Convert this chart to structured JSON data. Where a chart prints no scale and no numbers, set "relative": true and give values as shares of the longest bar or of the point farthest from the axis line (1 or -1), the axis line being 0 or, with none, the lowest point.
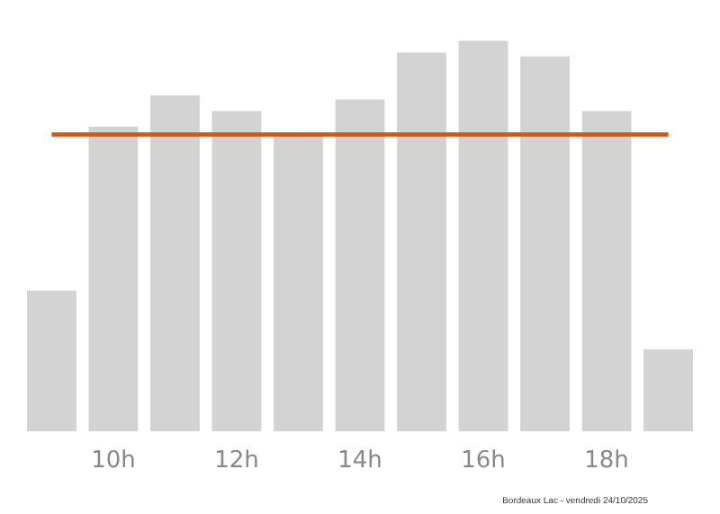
{
  "chart_data": {
    "type": "bar",
    "relative": true,
    "categories": [
      null,
      "10h",
      null,
      "12h",
      null,
      "14h",
      null,
      "16h",
      null,
      "18h",
      null
    ],
    "values": [
      0.36,
      0.78,
      0.86,
      0.82,
      0.76,
      0.85,
      0.97,
      1,
      0.96,
      0.82,
      0.21
    ],
    "color": "#d3d3d3",
    "ref_lines": [
      {
        "axis": "y",
        "value": 0.76,
        "color": "#d4581c"
      }
    ],
    "annotations": [
      "Bordeaux Lac - vendredi 24/10/2025"
    ],
    "tick_labels": "x"
  }
}
